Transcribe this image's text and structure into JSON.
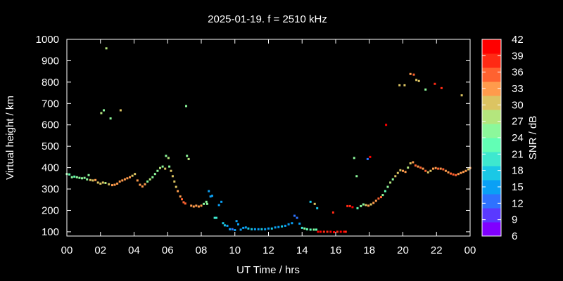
{
  "chart_data": {
    "type": "scatter",
    "title": "2025-01-19. f = 2510 kHz",
    "xlabel": "UT Time / hrs",
    "ylabel": "Virtual height / km",
    "xlim": [
      0,
      24
    ],
    "ylim": [
      80,
      1000
    ],
    "xticks": [
      "00",
      "02",
      "04",
      "06",
      "08",
      "10",
      "12",
      "14",
      "16",
      "18",
      "20",
      "22",
      "00"
    ],
    "yticks": [
      100,
      200,
      300,
      400,
      500,
      600,
      700,
      800,
      900,
      1000
    ],
    "colorbar": {
      "label": "SNR / dB",
      "range": [
        6,
        42
      ],
      "ticks": [
        42,
        39,
        36,
        33,
        30,
        27,
        24,
        21,
        18,
        15,
        12,
        9,
        6
      ],
      "colors": [
        "#8000ff",
        "#5a3aff",
        "#2f72ff",
        "#0aa0f5",
        "#1ac8e6",
        "#3ee8cf",
        "#62feb5",
        "#8cf89b",
        "#b4e67d",
        "#dcc462",
        "#ff9b4c",
        "#ff6230",
        "#ff2a14",
        "#ff0000"
      ],
      "grid": false
    },
    "grid": false,
    "legend": "none",
    "points": [
      [
        0.0,
        370,
        24
      ],
      [
        0.15,
        368,
        22
      ],
      [
        0.3,
        355,
        24
      ],
      [
        0.45,
        358,
        22
      ],
      [
        0.6,
        355,
        25
      ],
      [
        0.75,
        352,
        24
      ],
      [
        0.9,
        350,
        25
      ],
      [
        1.05,
        352,
        24
      ],
      [
        1.2,
        345,
        26
      ],
      [
        1.3,
        365,
        24
      ],
      [
        1.4,
        342,
        30
      ],
      [
        1.55,
        340,
        32
      ],
      [
        1.7,
        342,
        34
      ],
      [
        1.85,
        330,
        32
      ],
      [
        2.0,
        325,
        31
      ],
      [
        2.15,
        330,
        30
      ],
      [
        2.3,
        328,
        28
      ],
      [
        2.5,
        322,
        32
      ],
      [
        2.7,
        318,
        33
      ],
      [
        2.85,
        320,
        34
      ],
      [
        3.0,
        325,
        33
      ],
      [
        3.15,
        335,
        35
      ],
      [
        3.3,
        340,
        34
      ],
      [
        3.45,
        345,
        35
      ],
      [
        3.6,
        350,
        34
      ],
      [
        3.75,
        355,
        34
      ],
      [
        3.9,
        362,
        32
      ],
      [
        4.05,
        370,
        32
      ],
      [
        4.2,
        340,
        34
      ],
      [
        4.35,
        320,
        35
      ],
      [
        4.5,
        312,
        34
      ],
      [
        4.65,
        322,
        33
      ],
      [
        4.8,
        335,
        26
      ],
      [
        4.95,
        345,
        27
      ],
      [
        5.1,
        355,
        26
      ],
      [
        5.25,
        370,
        25
      ],
      [
        5.4,
        385,
        26
      ],
      [
        5.55,
        398,
        28
      ],
      [
        5.7,
        405,
        26
      ],
      [
        5.85,
        395,
        30
      ],
      [
        5.9,
        455,
        25
      ],
      [
        6.05,
        445,
        28
      ],
      [
        6.1,
        405,
        24
      ],
      [
        6.2,
        385,
        32
      ],
      [
        6.3,
        360,
        32
      ],
      [
        6.4,
        335,
        32
      ],
      [
        6.5,
        310,
        32
      ],
      [
        6.6,
        290,
        34
      ],
      [
        6.75,
        265,
        34
      ],
      [
        6.85,
        252,
        36
      ],
      [
        6.95,
        238,
        36
      ],
      [
        7.05,
        232,
        37
      ],
      [
        7.15,
        455,
        24
      ],
      [
        7.25,
        440,
        28
      ],
      [
        7.4,
        222,
        34
      ],
      [
        7.55,
        218,
        33
      ],
      [
        7.7,
        222,
        34
      ],
      [
        7.85,
        218,
        35
      ],
      [
        8.0,
        222,
        33
      ],
      [
        8.15,
        230,
        26
      ],
      [
        8.3,
        240,
        26
      ],
      [
        8.35,
        230,
        24
      ],
      [
        8.45,
        290,
        13
      ],
      [
        8.55,
        265,
        14
      ],
      [
        8.65,
        268,
        15
      ],
      [
        8.8,
        165,
        20
      ],
      [
        8.9,
        165,
        21
      ],
      [
        9.05,
        225,
        15
      ],
      [
        9.2,
        240,
        13
      ],
      [
        9.3,
        140,
        16
      ],
      [
        9.4,
        130,
        18
      ],
      [
        9.55,
        128,
        14
      ],
      [
        9.7,
        112,
        13
      ],
      [
        9.85,
        112,
        12
      ],
      [
        10.0,
        108,
        13
      ],
      [
        10.1,
        150,
        14
      ],
      [
        10.2,
        135,
        14
      ],
      [
        10.35,
        110,
        15
      ],
      [
        10.5,
        118,
        15
      ],
      [
        10.65,
        120,
        14
      ],
      [
        10.8,
        115,
        16
      ],
      [
        11.0,
        112,
        16
      ],
      [
        11.2,
        112,
        15
      ],
      [
        11.4,
        112,
        15
      ],
      [
        11.6,
        112,
        16
      ],
      [
        11.8,
        112,
        15
      ],
      [
        12.0,
        115,
        14
      ],
      [
        12.2,
        115,
        16
      ],
      [
        12.4,
        120,
        15
      ],
      [
        12.6,
        122,
        14
      ],
      [
        12.8,
        125,
        16
      ],
      [
        13.0,
        128,
        14
      ],
      [
        13.2,
        135,
        14
      ],
      [
        13.4,
        140,
        14
      ],
      [
        13.55,
        175,
        12
      ],
      [
        13.7,
        165,
        12
      ],
      [
        13.85,
        138,
        14
      ],
      [
        14.0,
        118,
        21
      ],
      [
        14.15,
        115,
        24
      ],
      [
        14.3,
        112,
        23
      ],
      [
        14.5,
        110,
        22
      ],
      [
        14.7,
        110,
        25
      ],
      [
        14.85,
        110,
        22
      ],
      [
        14.5,
        240,
        16
      ],
      [
        14.75,
        230,
        30
      ],
      [
        14.9,
        210,
        17
      ],
      [
        14.95,
        100,
        42
      ],
      [
        15.1,
        100,
        41
      ],
      [
        15.3,
        100,
        40
      ],
      [
        15.5,
        100,
        40
      ],
      [
        15.7,
        100,
        41
      ],
      [
        15.9,
        98,
        42
      ],
      [
        15.85,
        190,
        40
      ],
      [
        16.1,
        100,
        40
      ],
      [
        16.3,
        100,
        41
      ],
      [
        16.5,
        100,
        42
      ],
      [
        16.6,
        100,
        40
      ],
      [
        16.7,
        220,
        40
      ],
      [
        16.85,
        220,
        40
      ],
      [
        17.0,
        215,
        41
      ],
      [
        17.1,
        445,
        24
      ],
      [
        17.25,
        360,
        24
      ],
      [
        17.3,
        210,
        23
      ],
      [
        17.5,
        220,
        26
      ],
      [
        17.65,
        228,
        25
      ],
      [
        17.8,
        225,
        32
      ],
      [
        17.95,
        222,
        34
      ],
      [
        18.1,
        228,
        32
      ],
      [
        18.25,
        235,
        34
      ],
      [
        18.4,
        245,
        34
      ],
      [
        18.55,
        255,
        36
      ],
      [
        18.7,
        262,
        36
      ],
      [
        17.9,
        440,
        12
      ],
      [
        18.05,
        450,
        41
      ],
      [
        18.8,
        272,
        26
      ],
      [
        18.95,
        290,
        23
      ],
      [
        19.1,
        310,
        26
      ],
      [
        19.25,
        330,
        28
      ],
      [
        19.4,
        345,
        26
      ],
      [
        19.55,
        360,
        30
      ],
      [
        19.7,
        375,
        30
      ],
      [
        19.85,
        388,
        30
      ],
      [
        20.0,
        385,
        33
      ],
      [
        20.15,
        380,
        34
      ],
      [
        20.3,
        400,
        28
      ],
      [
        20.45,
        420,
        30
      ],
      [
        20.6,
        425,
        34
      ],
      [
        20.75,
        410,
        36
      ],
      [
        20.9,
        405,
        35
      ],
      [
        21.05,
        400,
        36
      ],
      [
        21.2,
        395,
        35
      ],
      [
        21.35,
        385,
        36
      ],
      [
        21.5,
        378,
        30
      ],
      [
        21.65,
        385,
        31
      ],
      [
        21.8,
        395,
        34
      ],
      [
        21.95,
        398,
        35
      ],
      [
        22.1,
        395,
        36
      ],
      [
        22.25,
        395,
        35
      ],
      [
        22.4,
        392,
        36
      ],
      [
        22.55,
        385,
        35
      ],
      [
        22.7,
        378,
        34
      ],
      [
        22.85,
        372,
        36
      ],
      [
        23.0,
        368,
        37
      ],
      [
        23.15,
        365,
        36
      ],
      [
        23.3,
        370,
        35
      ],
      [
        23.45,
        375,
        34
      ],
      [
        23.6,
        380,
        34
      ],
      [
        23.75,
        385,
        33
      ],
      [
        23.9,
        392,
        32
      ],
      [
        24.0,
        398,
        33
      ],
      [
        2.35,
        958,
        28
      ],
      [
        2.05,
        655,
        28
      ],
      [
        2.2,
        668,
        25
      ],
      [
        2.6,
        630,
        24
      ],
      [
        3.2,
        668,
        30
      ],
      [
        7.1,
        688,
        24
      ],
      [
        19.0,
        600,
        42
      ],
      [
        19.8,
        785,
        32
      ],
      [
        20.1,
        785,
        31
      ],
      [
        20.45,
        838,
        35
      ],
      [
        20.65,
        835,
        36
      ],
      [
        20.8,
        810,
        32
      ],
      [
        20.95,
        805,
        31
      ],
      [
        21.35,
        765,
        24
      ],
      [
        21.9,
        792,
        40
      ],
      [
        22.3,
        772,
        38
      ],
      [
        23.5,
        738,
        31
      ]
    ]
  }
}
